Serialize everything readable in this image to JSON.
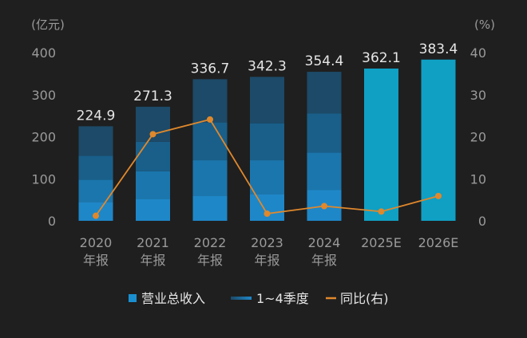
{
  "chart_data": {
    "type": "bar",
    "title": "",
    "left_unit": "(亿元)",
    "right_unit": "(%)",
    "left_axis": {
      "min": 0,
      "max": 400,
      "ticks": [
        0,
        100,
        200,
        300,
        400
      ]
    },
    "right_axis": {
      "min": 0,
      "max": 40,
      "ticks": [
        0,
        10,
        20,
        30,
        40
      ]
    },
    "categories": [
      [
        "2020",
        "年报"
      ],
      [
        "2021",
        "年报"
      ],
      [
        "2022",
        "年报"
      ],
      [
        "2023",
        "年报"
      ],
      [
        "2024",
        "年报"
      ],
      [
        "2025E"
      ],
      [
        "2026E"
      ]
    ],
    "series": [
      {
        "name": "营业总收入",
        "type": "bar",
        "axis": "left",
        "values": [
          224.9,
          271.3,
          336.7,
          342.3,
          354.4,
          362.1,
          383.4
        ],
        "labels": [
          "224.9",
          "271.3",
          "336.7",
          "342.3",
          "354.4",
          "362.1",
          "383.4"
        ]
      },
      {
        "name": "1~4季度",
        "type": "stacked-bar",
        "axis": "left",
        "segments": [
          [
            45,
            53,
            57,
            69.9
          ],
          [
            52,
            66,
            70,
            83.3
          ],
          [
            60,
            84,
            90,
            102.7
          ],
          [
            64,
            80,
            88,
            110.3
          ],
          [
            73,
            89,
            93,
            99.4
          ],
          null,
          null
        ]
      },
      {
        "name": "同比(右)",
        "type": "line",
        "axis": "right",
        "values": [
          1.2,
          20.6,
          24.1,
          1.7,
          3.5,
          2.2,
          5.9
        ]
      }
    ],
    "legend": [
      {
        "label": "营业总收入",
        "marker": "square"
      },
      {
        "label": "1~4季度",
        "marker": "gradient-line"
      },
      {
        "label": "同比(右)",
        "marker": "line"
      }
    ],
    "legend_position": "bottom",
    "colors": {
      "background": "#1f1f1f",
      "axis_text": "#9a9a9a",
      "label_text": "#e6e6e6",
      "total_bar": "#0fa0c4",
      "legend_bar": "#1a8fd0",
      "line": "#e0882c",
      "quarters": [
        "#1e87c8",
        "#1b76ad",
        "#195f8a",
        "#1c4a68"
      ]
    }
  }
}
